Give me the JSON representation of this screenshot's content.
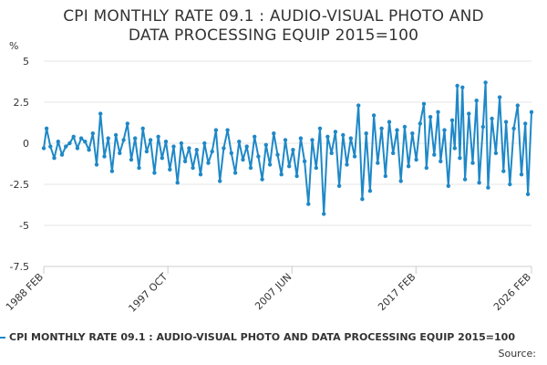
{
  "chart_data": {
    "type": "line",
    "title_line1": "CPI MONTHLY RATE 09.1 : AUDIO-VISUAL PHOTO AND",
    "title_line2": "DATA PROCESSING EQUIP 2015=100",
    "y_unit": "%",
    "ylim": [
      -7.5,
      5
    ],
    "y_ticks": [
      5,
      2.5,
      0,
      -2.5,
      -5,
      -7.5
    ],
    "y_tick_labels": [
      "5",
      "2.5",
      "0",
      "-2.5",
      "-5",
      "-7.5"
    ],
    "x_range": [
      1988.08,
      2026.08
    ],
    "x_ticks": [
      1988.08,
      1997.75,
      2007.42,
      2017.08,
      2026.08
    ],
    "x_tick_labels": [
      "1988 FEB",
      "1997 OCT",
      "2007 JUN",
      "2017 FEB",
      "2026 FEB"
    ],
    "grid": true,
    "series": [
      {
        "name": "CPI MONTHLY RATE 09.1 : AUDIO-VISUAL PHOTO AND DATA PROCESSING EQUIP 2015=100",
        "color": "#1f88c7",
        "points": [
          [
            1988.08,
            -0.3
          ],
          [
            1988.3,
            0.9
          ],
          [
            1988.6,
            -0.2
          ],
          [
            1988.9,
            -0.9
          ],
          [
            1989.2,
            0.1
          ],
          [
            1989.5,
            -0.7
          ],
          [
            1989.8,
            -0.2
          ],
          [
            1990.1,
            0.0
          ],
          [
            1990.4,
            0.4
          ],
          [
            1990.7,
            -0.3
          ],
          [
            1991.0,
            0.3
          ],
          [
            1991.3,
            0.1
          ],
          [
            1991.6,
            -0.4
          ],
          [
            1991.9,
            0.6
          ],
          [
            1992.2,
            -1.3
          ],
          [
            1992.5,
            1.8
          ],
          [
            1992.8,
            -0.8
          ],
          [
            1993.1,
            0.3
          ],
          [
            1993.4,
            -1.7
          ],
          [
            1993.7,
            0.5
          ],
          [
            1994.0,
            -0.6
          ],
          [
            1994.3,
            0.2
          ],
          [
            1994.6,
            1.2
          ],
          [
            1994.9,
            -1.0
          ],
          [
            1995.2,
            0.3
          ],
          [
            1995.5,
            -1.5
          ],
          [
            1995.8,
            0.9
          ],
          [
            1996.1,
            -0.5
          ],
          [
            1996.4,
            0.2
          ],
          [
            1996.7,
            -1.8
          ],
          [
            1997.0,
            0.4
          ],
          [
            1997.3,
            -0.9
          ],
          [
            1997.6,
            0.1
          ],
          [
            1997.9,
            -1.6
          ],
          [
            1998.2,
            -0.2
          ],
          [
            1998.5,
            -2.4
          ],
          [
            1998.8,
            0.0
          ],
          [
            1999.1,
            -1.1
          ],
          [
            1999.4,
            -0.3
          ],
          [
            1999.7,
            -1.5
          ],
          [
            2000.0,
            -0.4
          ],
          [
            2000.3,
            -1.9
          ],
          [
            2000.6,
            0.0
          ],
          [
            2000.9,
            -1.2
          ],
          [
            2001.2,
            -0.5
          ],
          [
            2001.5,
            0.8
          ],
          [
            2001.8,
            -2.3
          ],
          [
            2002.1,
            -0.3
          ],
          [
            2002.4,
            0.8
          ],
          [
            2002.7,
            -0.6
          ],
          [
            2003.0,
            -1.8
          ],
          [
            2003.3,
            0.1
          ],
          [
            2003.6,
            -1.0
          ],
          [
            2003.9,
            -0.2
          ],
          [
            2004.2,
            -1.5
          ],
          [
            2004.5,
            0.4
          ],
          [
            2004.8,
            -0.8
          ],
          [
            2005.1,
            -2.2
          ],
          [
            2005.4,
            -0.1
          ],
          [
            2005.7,
            -1.3
          ],
          [
            2006.0,
            0.6
          ],
          [
            2006.3,
            -0.7
          ],
          [
            2006.6,
            -1.9
          ],
          [
            2006.9,
            0.2
          ],
          [
            2007.2,
            -1.4
          ],
          [
            2007.5,
            -0.4
          ],
          [
            2007.8,
            -2.0
          ],
          [
            2008.1,
            0.3
          ],
          [
            2008.4,
            -1.1
          ],
          [
            2008.7,
            -3.7
          ],
          [
            2009.0,
            0.2
          ],
          [
            2009.3,
            -1.5
          ],
          [
            2009.6,
            0.9
          ],
          [
            2009.9,
            -4.3
          ],
          [
            2010.2,
            0.4
          ],
          [
            2010.5,
            -0.6
          ],
          [
            2010.8,
            0.7
          ],
          [
            2011.1,
            -2.6
          ],
          [
            2011.4,
            0.5
          ],
          [
            2011.7,
            -1.3
          ],
          [
            2012.0,
            0.3
          ],
          [
            2012.3,
            -0.8
          ],
          [
            2012.6,
            2.3
          ],
          [
            2012.9,
            -3.4
          ],
          [
            2013.2,
            0.6
          ],
          [
            2013.5,
            -2.9
          ],
          [
            2013.8,
            1.7
          ],
          [
            2014.1,
            -1.2
          ],
          [
            2014.4,
            0.9
          ],
          [
            2014.7,
            -2.0
          ],
          [
            2015.0,
            1.3
          ],
          [
            2015.3,
            -0.6
          ],
          [
            2015.6,
            0.8
          ],
          [
            2015.9,
            -2.3
          ],
          [
            2016.2,
            1.0
          ],
          [
            2016.5,
            -1.4
          ],
          [
            2016.8,
            0.6
          ],
          [
            2017.1,
            -1.0
          ],
          [
            2017.4,
            1.2
          ],
          [
            2017.7,
            2.4
          ],
          [
            2017.9,
            -1.5
          ],
          [
            2018.2,
            1.6
          ],
          [
            2018.5,
            -0.7
          ],
          [
            2018.8,
            1.9
          ],
          [
            2019.0,
            -1.1
          ],
          [
            2019.3,
            0.8
          ],
          [
            2019.6,
            -2.6
          ],
          [
            2019.9,
            1.4
          ],
          [
            2020.1,
            -0.3
          ],
          [
            2020.3,
            3.5
          ],
          [
            2020.5,
            -0.9
          ],
          [
            2020.7,
            3.4
          ],
          [
            2020.9,
            -2.2
          ],
          [
            2021.2,
            1.8
          ],
          [
            2021.5,
            -1.2
          ],
          [
            2021.8,
            2.6
          ],
          [
            2022.0,
            -2.4
          ],
          [
            2022.3,
            1.0
          ],
          [
            2022.5,
            3.7
          ],
          [
            2022.7,
            -2.7
          ],
          [
            2023.0,
            1.5
          ],
          [
            2023.3,
            -0.6
          ],
          [
            2023.6,
            2.8
          ],
          [
            2023.9,
            -1.7
          ],
          [
            2024.1,
            1.3
          ],
          [
            2024.4,
            -2.5
          ],
          [
            2024.7,
            0.9
          ],
          [
            2025.0,
            2.3
          ],
          [
            2025.3,
            -1.9
          ],
          [
            2025.6,
            1.2
          ],
          [
            2025.8,
            -3.1
          ],
          [
            2026.08,
            1.9
          ]
        ]
      }
    ],
    "legend": "CPI MONTHLY RATE 09.1 : AUDIO-VISUAL PHOTO AND DATA PROCESSING EQUIP 2015=100",
    "source_label": "Source:"
  }
}
